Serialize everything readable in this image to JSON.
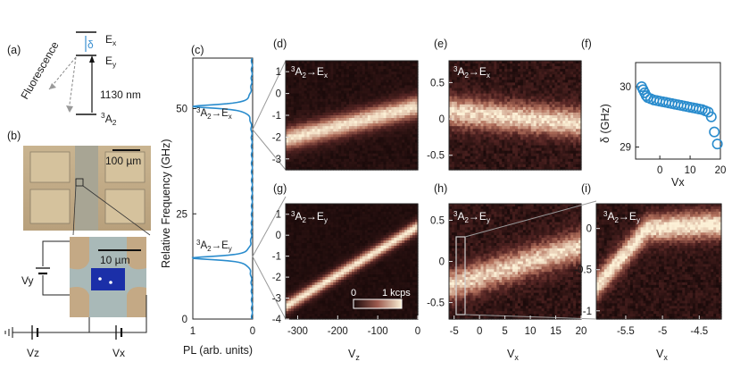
{
  "figure": {
    "panel_labels": [
      "(a)",
      "(b)",
      "(c)",
      "(d)",
      "(e)",
      "(f)",
      "(g)",
      "(h)",
      "(i)"
    ],
    "energy_diagram": {
      "levels": [
        "E",
        "x",
        "E",
        "y",
        "3",
        "A",
        "2"
      ],
      "splitting_symbol": "δ",
      "fluorescence_label": "Fluorescence",
      "laser_label": "1130 nm"
    },
    "device_image": {
      "scale_large": "100 µm",
      "scale_small": "10 µm",
      "voltage_labels": [
        "Vy",
        "Vz",
        "Vx"
      ]
    },
    "panel_c": {
      "ylabel": "Relative Frequency (GHz)",
      "xlabel": "PL (arb. units)",
      "yticks": [
        "0",
        "25",
        "50"
      ],
      "xticks": [
        "1",
        "0"
      ],
      "peak_label_x": [
        "3",
        "A",
        "2",
        "→E",
        "x"
      ],
      "peak_label_y": [
        "3",
        "A",
        "2",
        "→E",
        "y"
      ]
    },
    "panel_d": {
      "yticks": [
        "1",
        "0",
        "-1",
        "-2",
        "-3"
      ],
      "label": [
        "3",
        "A",
        "2",
        "→E",
        "x"
      ]
    },
    "panel_g": {
      "yticks": [
        "1",
        "0",
        "-1",
        "-2",
        "-3",
        "-4"
      ],
      "xticks": [
        "-300",
        "-200",
        "-100",
        "0"
      ],
      "xlabel": [
        "V",
        "z"
      ],
      "label": [
        "3",
        "A",
        "2",
        "→E",
        "y"
      ],
      "colorbar": [
        "0",
        "1 kcps"
      ]
    },
    "panel_e": {
      "yticks": [
        "0.5",
        "0",
        "-0.5"
      ],
      "label": [
        "3",
        "A",
        "2",
        "→E",
        "x"
      ]
    },
    "panel_h": {
      "yticks": [
        "0.5",
        "0",
        "-0.5"
      ],
      "xticks": [
        "-5",
        "0",
        "5",
        "10",
        "15",
        "20"
      ],
      "xlabel": [
        "V",
        "x"
      ],
      "label": [
        "3",
        "A",
        "2",
        "→E",
        "y"
      ]
    },
    "panel_f": {
      "ylabel": "δ (GHz)",
      "xlabel": "Vx",
      "yticks": [
        "30",
        "29"
      ],
      "xticks": [
        "0",
        "10",
        "20"
      ]
    },
    "panel_i": {
      "yticks": [
        "0",
        "-0.5",
        "-1"
      ],
      "xticks": [
        "-5.5",
        "-5",
        "-4.5"
      ],
      "xlabel": [
        "V",
        "x"
      ],
      "label": [
        "3",
        "A",
        "2",
        "→E",
        "y"
      ]
    }
  },
  "chart_data": [
    {
      "type": "line",
      "panel": "(c)",
      "xlabel": "PL (arb. units)",
      "ylabel": "Relative Frequency (GHz)",
      "ylim": [
        0,
        62
      ],
      "xlim": [
        1,
        0
      ],
      "peaks_ghz": [
        50.5,
        14.5
      ],
      "peak_labels": [
        "3A2→Ex",
        "3A2→Ey"
      ]
    },
    {
      "type": "heatmap",
      "panel": "(d)",
      "xlim": [
        -330,
        0
      ],
      "ylim": [
        -3.5,
        1.5
      ],
      "line_fit": {
        "x": [
          -330,
          0
        ],
        "y": [
          -2.1,
          -0.6
        ]
      },
      "label": "3A2→Ex"
    },
    {
      "type": "heatmap",
      "panel": "(g)",
      "xlim": [
        -330,
        0
      ],
      "ylim": [
        -4,
        1.5
      ],
      "xlabel": "Vz",
      "line_fit": {
        "x": [
          -330,
          0
        ],
        "y": [
          -3.4,
          0.4
        ]
      },
      "label": "3A2→Ey",
      "colorbar_range": [
        "0",
        "1 kcps"
      ]
    },
    {
      "type": "heatmap",
      "panel": "(e)",
      "xlim": [
        -6,
        20
      ],
      "ylim": [
        -0.7,
        0.8
      ],
      "line_fit": {
        "x": [
          -6,
          18
        ],
        "y": [
          0.1,
          -0.05
        ]
      },
      "label": "3A2→Ex"
    },
    {
      "type": "heatmap",
      "panel": "(h)",
      "xlim": [
        -6,
        20
      ],
      "ylim": [
        -0.7,
        0.7
      ],
      "xlabel": "Vx",
      "line_fit": {
        "x": [
          -6,
          18
        ],
        "y": [
          -0.3,
          0.15
        ]
      },
      "label": "3A2→Ey"
    },
    {
      "type": "scatter",
      "panel": "(f)",
      "xlabel": "Vx",
      "ylabel": "δ (GHz)",
      "xlim": [
        -8,
        20
      ],
      "ylim": [
        28.8,
        30.4
      ],
      "x": [
        -6,
        -5.5,
        -5,
        -4.5,
        -4,
        -3,
        -2,
        -1,
        0,
        1,
        2,
        3,
        4,
        5,
        6,
        7,
        8,
        9,
        10,
        11,
        12,
        13,
        14,
        15,
        16,
        17,
        18,
        19
      ],
      "y": [
        30.0,
        29.95,
        29.9,
        29.85,
        29.82,
        29.8,
        29.78,
        29.77,
        29.76,
        29.75,
        29.74,
        29.73,
        29.72,
        29.71,
        29.7,
        29.69,
        29.68,
        29.67,
        29.66,
        29.65,
        29.64,
        29.63,
        29.62,
        29.6,
        29.58,
        29.5,
        29.25,
        29.05
      ]
    },
    {
      "type": "heatmap",
      "panel": "(i)",
      "xlim": [
        -5.9,
        -4.2
      ],
      "ylim": [
        -1.1,
        0.3
      ],
      "xlabel": "Vx",
      "line_fit": {
        "x": [
          -5.7,
          -5.2,
          -4.2
        ],
        "y": [
          -0.5,
          0.0,
          0.05
        ]
      },
      "label": "3A2→Ey"
    }
  ]
}
